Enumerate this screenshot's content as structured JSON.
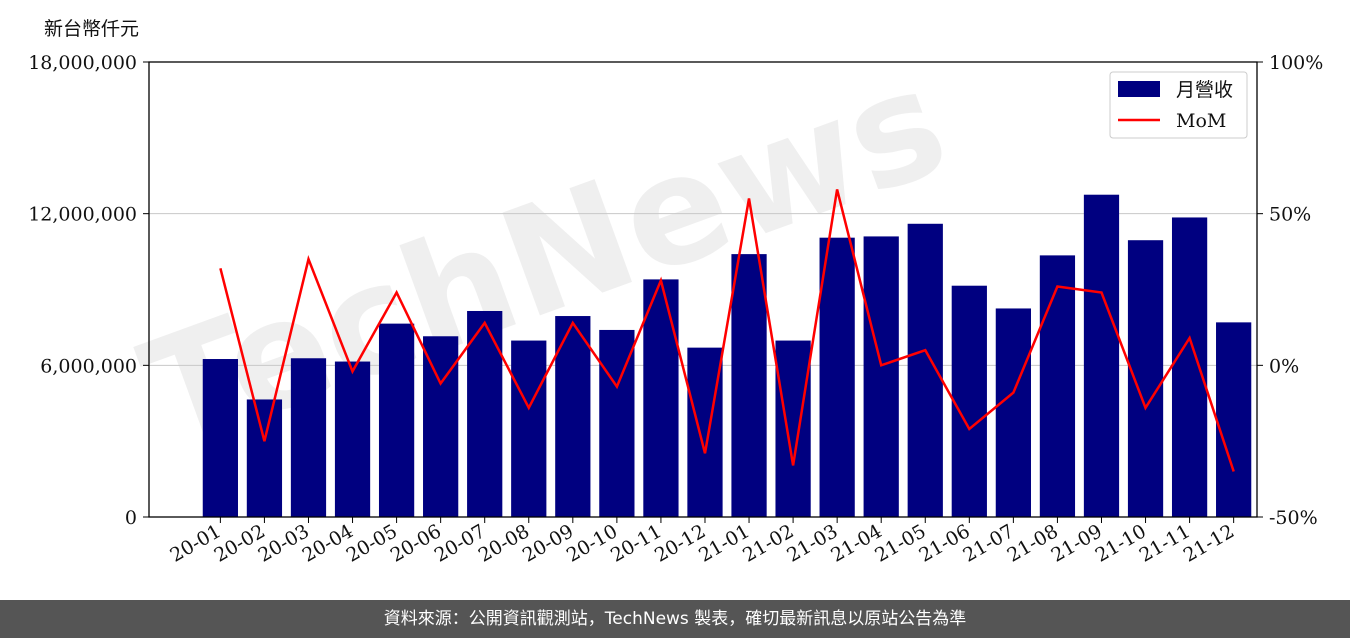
{
  "chart_data": {
    "type": "bar",
    "y_unit_label": "新台幣仟元",
    "categories": [
      "20-01",
      "20-02",
      "20-03",
      "20-04",
      "20-05",
      "20-06",
      "20-07",
      "20-08",
      "20-09",
      "20-10",
      "20-11",
      "20-12",
      "21-01",
      "21-02",
      "21-03",
      "21-04",
      "21-05",
      "21-06",
      "21-07",
      "21-08",
      "21-09",
      "21-10",
      "21-11",
      "21-12"
    ],
    "series": [
      {
        "name": "月營收",
        "kind": "bar",
        "axis": "left",
        "color": "#000080",
        "values": [
          6250000,
          4650000,
          6280000,
          6150000,
          7650000,
          7150000,
          8150000,
          6980000,
          7950000,
          7400000,
          9400000,
          6700000,
          10400000,
          6980000,
          11050000,
          11100000,
          11600000,
          9150000,
          8250000,
          10350000,
          12750000,
          10950000,
          11850000,
          7700000
        ]
      },
      {
        "name": "MoM",
        "kind": "line",
        "axis": "right",
        "color": "#ff0000",
        "values": [
          32,
          -25,
          35,
          -2,
          24,
          -6,
          14,
          -14,
          14,
          -7,
          28,
          -29,
          55,
          -33,
          58,
          0,
          5,
          -21,
          -9,
          26,
          24,
          -14,
          9,
          -35
        ]
      }
    ],
    "y_left": {
      "min": 0,
      "max": 18000000,
      "ticks": [
        0,
        6000000,
        12000000,
        18000000
      ],
      "tick_labels": [
        "0",
        "6,000,000",
        "12,000,000",
        "18,000,000"
      ]
    },
    "y_right": {
      "min": -50,
      "max": 100,
      "ticks": [
        -50,
        0,
        50,
        100
      ],
      "tick_labels": [
        "-50%",
        "0%",
        "50%",
        "100%"
      ]
    },
    "grid": "horizontal",
    "legend_position": "top-right",
    "watermark": "TechNews"
  },
  "footer": {
    "text": "資料來源：公開資訊觀測站，TechNews 製表，確切最新訊息以原站公告為準"
  }
}
